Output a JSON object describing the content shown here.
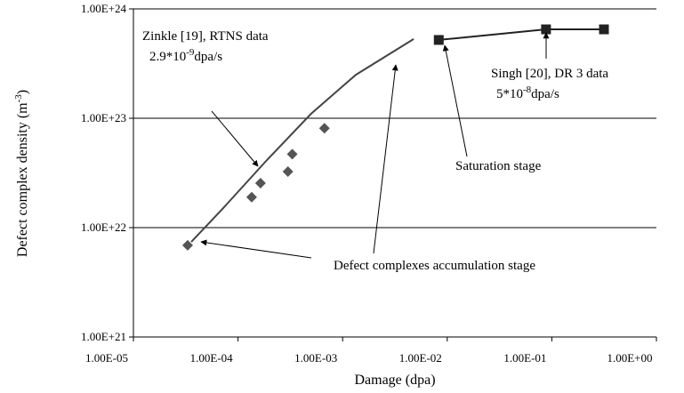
{
  "chart_data": {
    "type": "scatter",
    "x_label": "Damage (dpa)",
    "y_label": {
      "text": "Defect complex density (m",
      "sup": "-3",
      "after": ")"
    },
    "xlog": true,
    "ylog": true,
    "grid": true,
    "xlim": [
      1e-05,
      1
    ],
    "ylim": [
      1e+21,
      1e+24
    ],
    "xticks": [
      {
        "value": 1e-05,
        "label": "1.00E-05"
      },
      {
        "value": 0.0001,
        "label": "1.00E-04"
      },
      {
        "value": 0.001,
        "label": "1.00E-03"
      },
      {
        "value": 0.01,
        "label": "1.00E-02"
      },
      {
        "value": 0.1,
        "label": "1.00E-01"
      },
      {
        "value": 1,
        "label": "1.00E+00"
      }
    ],
    "yticks": [
      {
        "value": 1e+21,
        "label": "1.00E+21"
      },
      {
        "value": 1e+22,
        "label": "1.00E+22"
      },
      {
        "value": 1e+23,
        "label": "1.00E+23"
      },
      {
        "value": 1e+24,
        "label": "1.00E+24"
      }
    ],
    "series": [
      {
        "color": "#555555",
        "marker": "diamond",
        "line": false,
        "x": [
          3.3e-05,
          0.000135,
          0.000164,
          0.0003,
          0.00033,
          0.00067
        ],
        "values": [
          6.9e+21,
          1.9e+22,
          2.55e+22,
          3.25e+22,
          4.7e+22,
          8.1e+22
        ]
      },
      {
        "color": "#444444",
        "marker": "none",
        "line": true,
        "x": [
          3.57e-05,
          7.08e-05,
          0.000189,
          0.0005,
          0.00134,
          0.00478
        ],
        "values": [
          7.4e+21,
          1.48e+22,
          4.15e+22,
          1.1e+23,
          2.5e+23,
          5.3e+23
        ]
      },
      {
        "color": "#222222",
        "marker": "square",
        "line": true,
        "x": [
          0.0083,
          0.088,
          0.315
        ],
        "values": [
          5.2e+23,
          6.5e+23,
          6.5e+23
        ]
      }
    ],
    "annotations": [
      {
        "text": "Zinkle [19], RTNS  data"
      },
      {
        "text": "2.9*10",
        "sup": "-9",
        "after": "dpa/s"
      },
      {
        "text": "Singh [20], DR 3 data"
      },
      {
        "text": "5*10",
        "sup": "-8",
        "after": "dpa/s"
      },
      {
        "text": "Saturation stage"
      },
      {
        "text": "Defect complexes accumulation stage"
      }
    ]
  }
}
